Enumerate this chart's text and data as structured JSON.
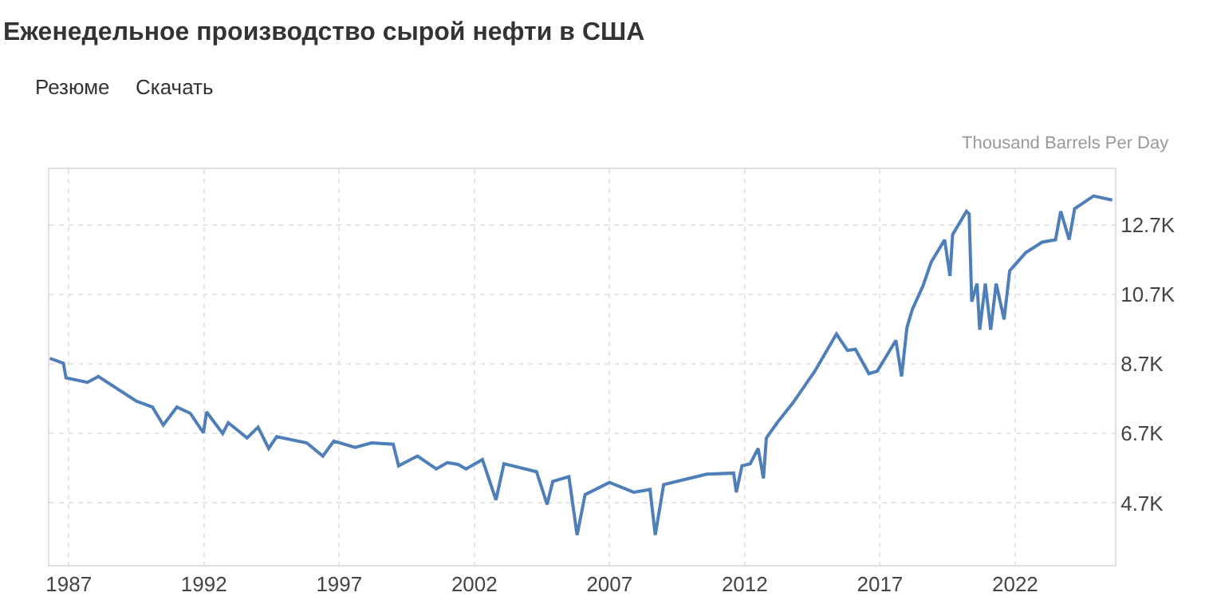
{
  "chart_data": {
    "type": "line",
    "title": "Еженедельное производство сырой нефти в США",
    "ylabel": "Thousand Barrels Per Day",
    "annotations": [
      "Резюме",
      "Скачать"
    ],
    "x": [
      "1986-04-20",
      "1986-10-20",
      "1986-11-25",
      "1987-09-10",
      "1988-02-05",
      "1989-07-01",
      "1990-02-05",
      "1990-07-01",
      "1991-01-01",
      "1991-07-01",
      "1991-12-25",
      "1992-02-05",
      "1992-09-10",
      "1992-11-25",
      "1993-08-05",
      "1994-01-01",
      "1994-05-25",
      "1994-09-10",
      "1995-10-20",
      "1996-05-25",
      "1996-10-20",
      "1997-08-05",
      "1998-03-15",
      "1999-01-01",
      "1999-03-15",
      "1999-11-25",
      "2000-08-05",
      "2001-01-01",
      "2001-05-25",
      "2001-09-10",
      "2002-04-20",
      "2002-10-20",
      "2003-02-05",
      "2004-04-20",
      "2004-09-10",
      "2004-11-25",
      "2005-07-01",
      "2005-10-20",
      "2006-02-05",
      "2007-01-01",
      "2007-11-25",
      "2008-07-01",
      "2008-09-10",
      "2009-01-01",
      "2009-10-20",
      "2010-08-05",
      "2011-08-05",
      "2011-09-10",
      "2011-11-25",
      "2012-03-15",
      "2012-07-01",
      "2012-09-10",
      "2012-10-20",
      "2013-03-15",
      "2013-10-20",
      "2014-08-05",
      "2015-05-25",
      "2015-10-20",
      "2016-02-05",
      "2016-08-05",
      "2016-11-25",
      "2017-08-05",
      "2017-10-20",
      "2018-01-01",
      "2018-03-15",
      "2018-08-05",
      "2018-11-25",
      "2019-05-25",
      "2019-08-05",
      "2019-09-10",
      "2020-03-15",
      "2020-04-20",
      "2020-05-25",
      "2020-08-05",
      "2020-09-10",
      "2020-11-25",
      "2021-02-05",
      "2021-04-20",
      "2021-08-05",
      "2021-10-20",
      "2022-05-25",
      "2023-01-01",
      "2023-07-01",
      "2023-09-10",
      "2024-01-01",
      "2024-03-15",
      "2024-11-25",
      "2025-08-05"
    ],
    "series": [
      {
        "color": "#4f7fb8",
        "values": [
          8860,
          8720,
          8300,
          8170,
          8340,
          7630,
          7460,
          6940,
          7460,
          7280,
          6720,
          7320,
          6700,
          7010,
          6570,
          6880,
          6270,
          6610,
          6430,
          6050,
          6480,
          6300,
          6430,
          6390,
          5770,
          6050,
          5680,
          5860,
          5810,
          5680,
          5950,
          4790,
          5830,
          5600,
          4660,
          5320,
          5460,
          3780,
          4940,
          5290,
          5010,
          5090,
          3780,
          5230,
          5380,
          5530,
          5560,
          5010,
          5770,
          5830,
          6270,
          5410,
          6570,
          7010,
          7600,
          8490,
          9560,
          9090,
          9120,
          8420,
          8490,
          9380,
          8340,
          9750,
          10270,
          10940,
          11630,
          12270,
          11230,
          12420,
          13090,
          13010,
          10490,
          11010,
          9680,
          11010,
          9680,
          11010,
          9980,
          11380,
          11900,
          12200,
          12270,
          13090,
          12270,
          13160,
          13530,
          13410
        ]
      }
    ],
    "xlim": [
      "1986-04-15",
      "2025-09-10"
    ],
    "xticks": [
      "1987",
      "1992",
      "1997",
      "2002",
      "2007",
      "2012",
      "2017",
      "2022"
    ],
    "ylim": [
      2920,
      14300
    ],
    "yticks": [
      {
        "value": 4700,
        "label": "4.7K"
      },
      {
        "value": 6700,
        "label": "6.7K"
      },
      {
        "value": 8700,
        "label": "8.7K"
      },
      {
        "value": 10700,
        "label": "10.7K"
      },
      {
        "value": 12700,
        "label": "12.7K"
      }
    ],
    "grid": true,
    "marker": "none",
    "line_style": "solid"
  }
}
